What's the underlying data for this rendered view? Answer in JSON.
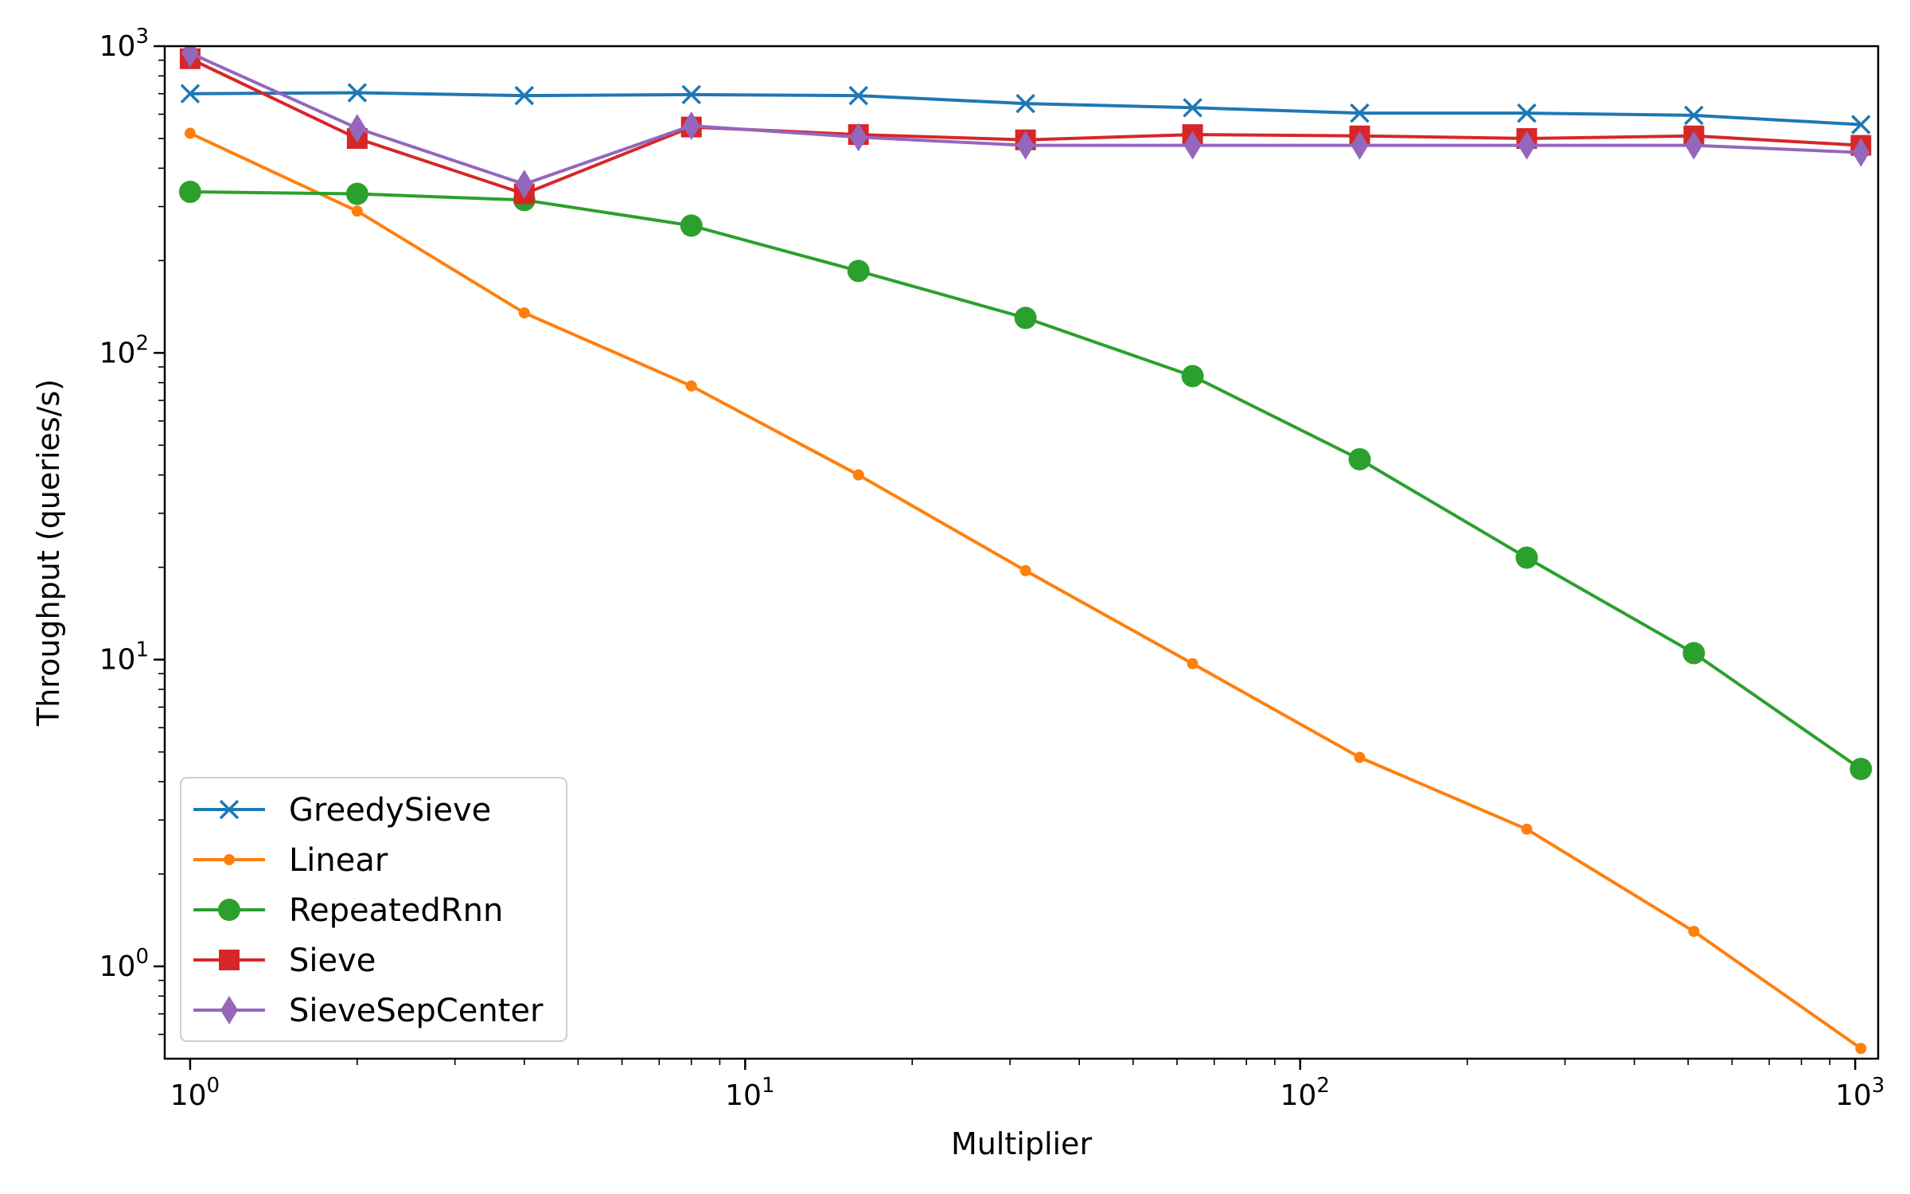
{
  "chart_data": {
    "type": "line",
    "title": "",
    "xlabel": "Multiplier",
    "ylabel": "Throughput (queries/s)",
    "x_scale": "log",
    "y_scale": "log",
    "xlim": [
      0.9,
      1100
    ],
    "ylim": [
      0.5,
      1000
    ],
    "x_ticks": [
      {
        "base": "10",
        "exp": "0",
        "value": 1
      },
      {
        "base": "10",
        "exp": "1",
        "value": 10
      },
      {
        "base": "10",
        "exp": "2",
        "value": 100
      },
      {
        "base": "10",
        "exp": "3",
        "value": 1000
      }
    ],
    "y_ticks": [
      {
        "base": "10",
        "exp": "0",
        "value": 1
      },
      {
        "base": "10",
        "exp": "1",
        "value": 10
      },
      {
        "base": "10",
        "exp": "2",
        "value": 100
      },
      {
        "base": "10",
        "exp": "3",
        "value": 1000
      }
    ],
    "grid": false,
    "legend_position": "lower-left",
    "x": [
      1,
      2,
      4,
      8,
      16,
      32,
      64,
      128,
      256,
      512,
      1024
    ],
    "series": [
      {
        "name": "GreedySieve",
        "color": "#1f77b4",
        "marker": "x",
        "values": [
          700,
          705,
          690,
          695,
          690,
          650,
          630,
          605,
          605,
          595,
          555
        ]
      },
      {
        "name": "Linear",
        "color": "#ff7f0e",
        "marker": "point",
        "values": [
          520,
          290,
          135,
          78,
          40,
          19.5,
          9.7,
          4.8,
          2.8,
          1.3,
          0.54
        ]
      },
      {
        "name": "RepeatedRnn",
        "color": "#2ca02c",
        "marker": "circle",
        "values": [
          335,
          330,
          315,
          260,
          185,
          130,
          84,
          45,
          21.5,
          10.5,
          4.4
        ]
      },
      {
        "name": "Sieve",
        "color": "#d62728",
        "marker": "square",
        "values": [
          910,
          500,
          330,
          545,
          515,
          495,
          515,
          510,
          500,
          510,
          475
        ]
      },
      {
        "name": "SieveSepCenter",
        "color": "#9467bd",
        "marker": "diamond",
        "values": [
          950,
          540,
          355,
          550,
          505,
          475,
          475,
          475,
          475,
          475,
          450
        ]
      }
    ]
  }
}
